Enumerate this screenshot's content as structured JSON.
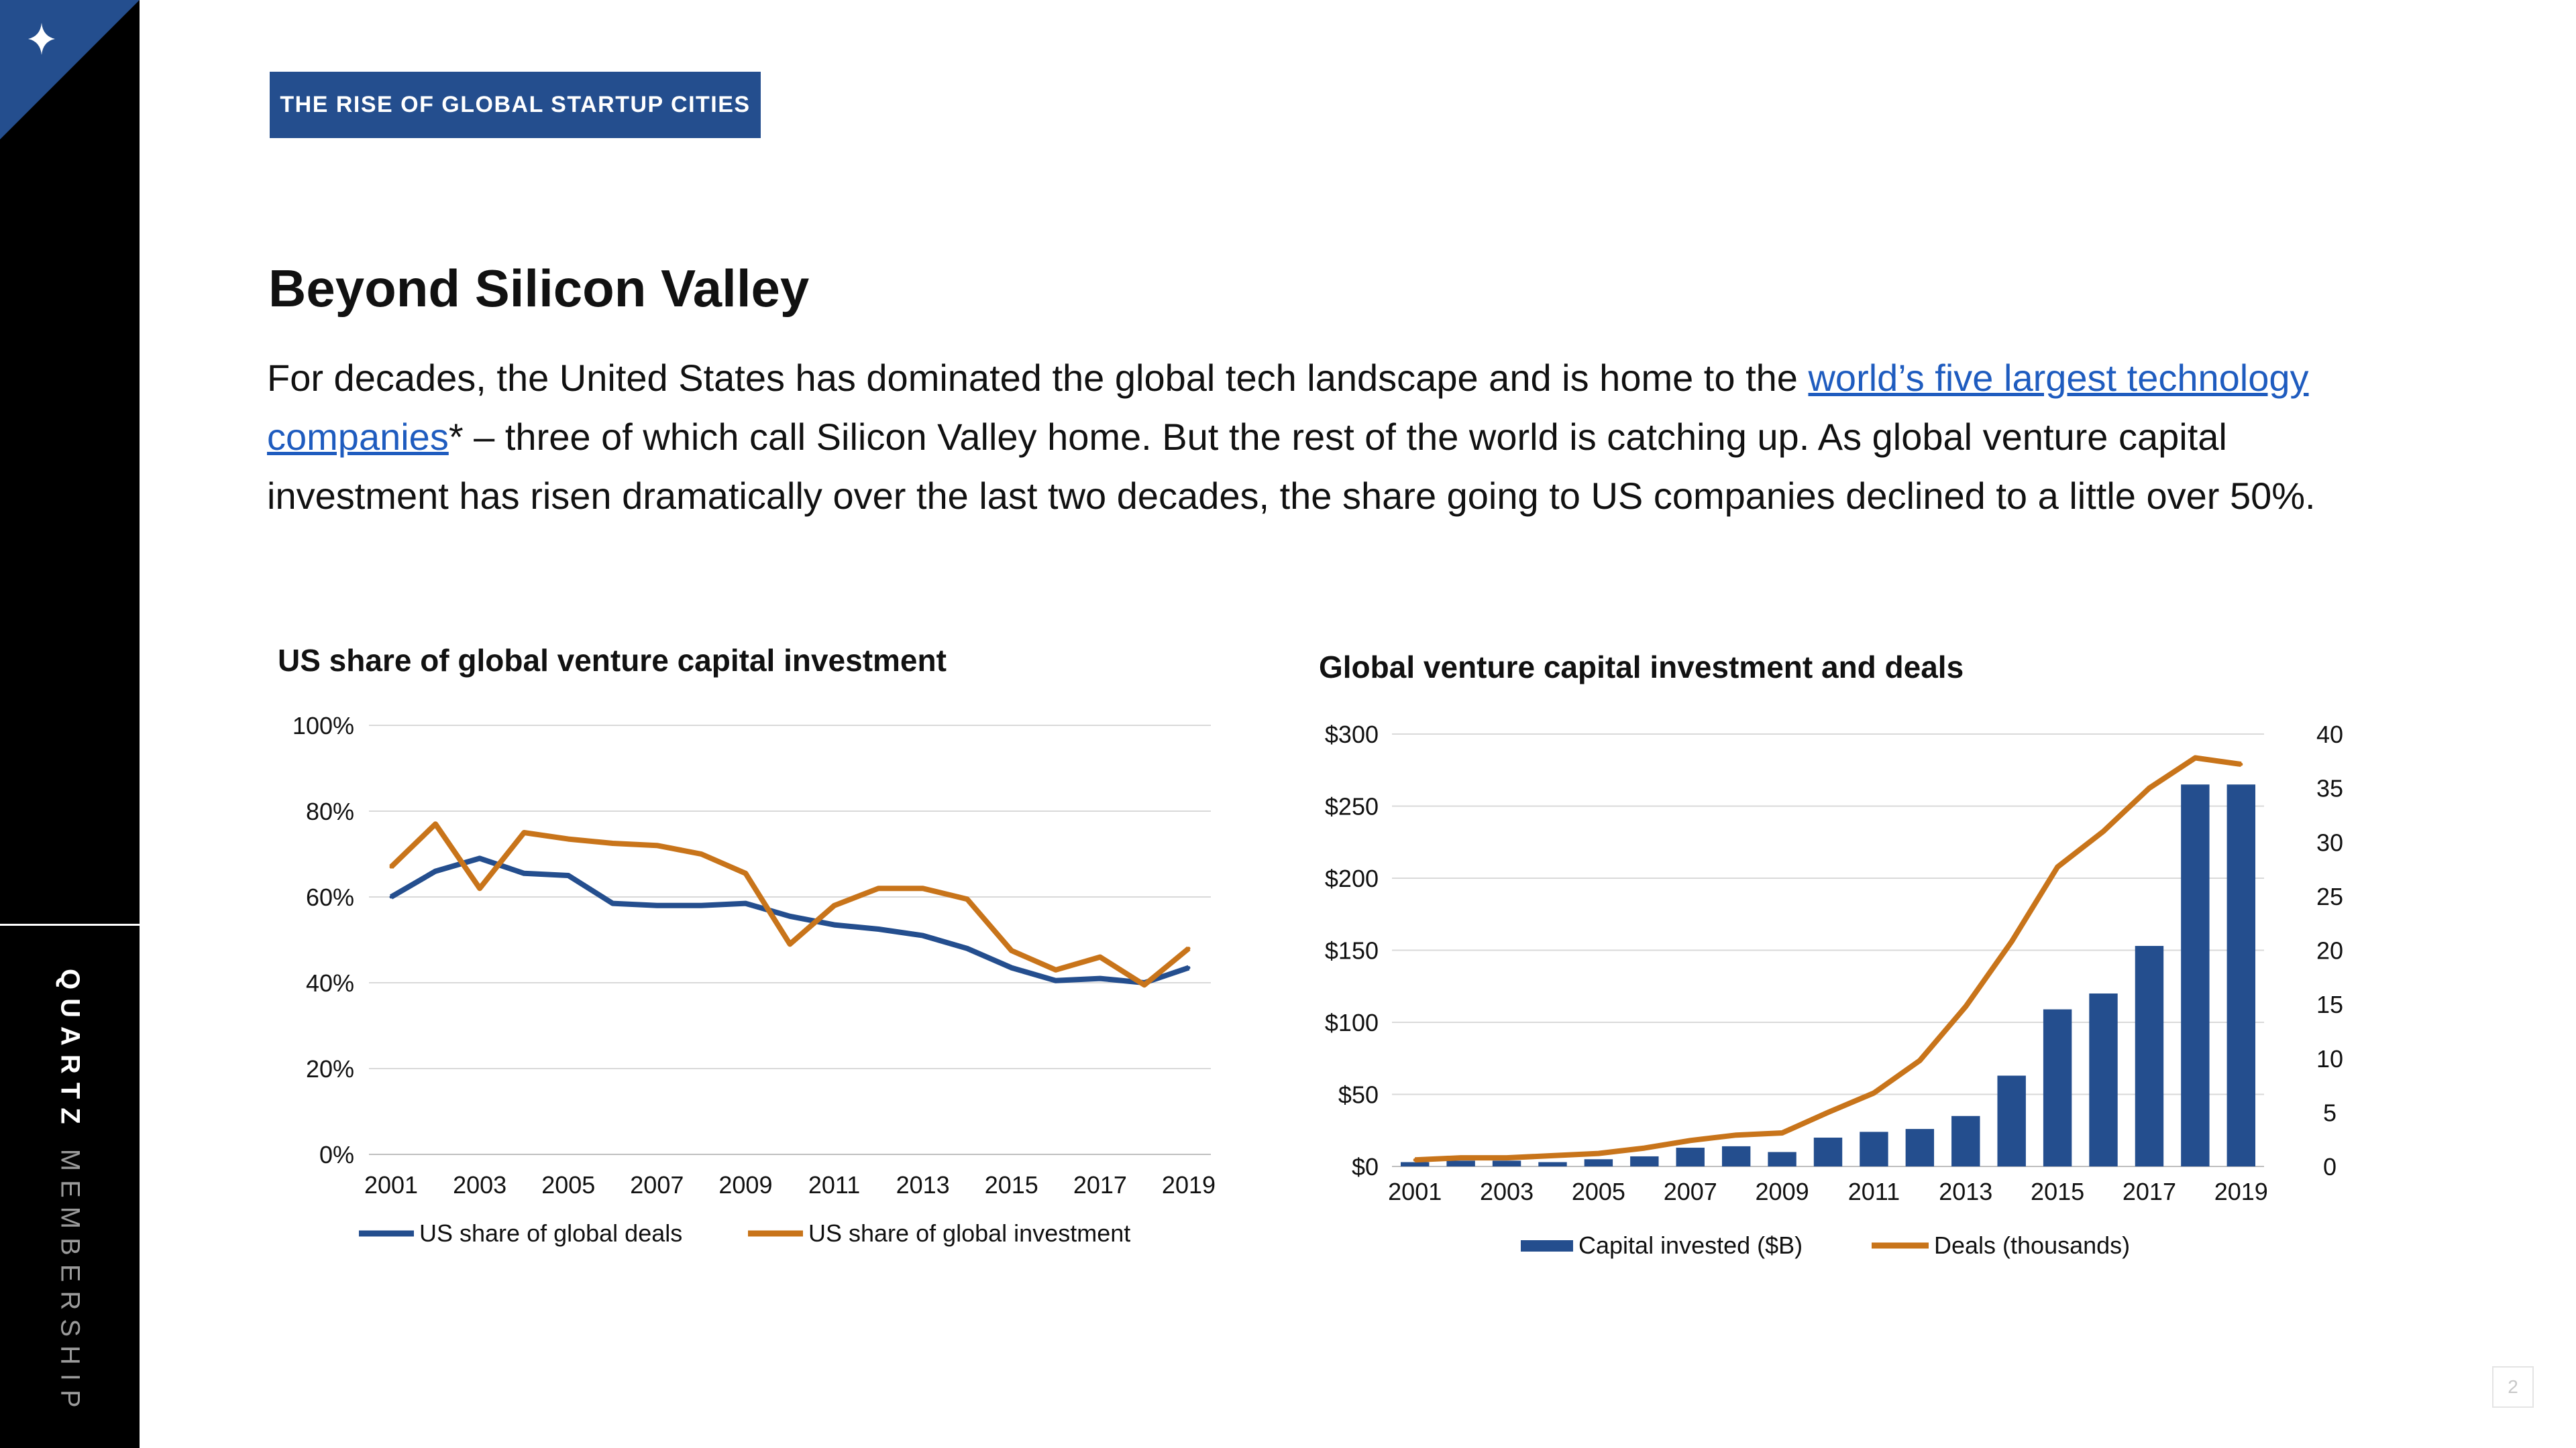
{
  "sidebar": {
    "brand_primary": "QUARTZ",
    "brand_secondary": "MEMBERSHIP",
    "corner_icon": "sparkle-icon",
    "corner_color": "#244e8e"
  },
  "tag_label": "THE RISE OF GLOBAL STARTUP CITIES",
  "heading": "Beyond Silicon Valley",
  "paragraph": {
    "part1": "For decades, the United States has dominated the global tech landscape and is home to the ",
    "link_text": "world’s five largest technology companies",
    "part2": "* – three of which call Silicon Valley home. But the rest of the world is catching up. As global venture capital investment has risen dramatically over the last two decades, the share going to US companies declined to a little over 50%."
  },
  "page_number": "2",
  "colors": {
    "navy": "#244e8e",
    "orange": "#c8741a",
    "link": "#1f5cbf"
  },
  "chart_data": [
    {
      "type": "line",
      "title": "US share of global venture capital investment",
      "x": [
        2001,
        2002,
        2003,
        2004,
        2005,
        2006,
        2007,
        2008,
        2009,
        2010,
        2011,
        2012,
        2013,
        2014,
        2015,
        2016,
        2017,
        2018,
        2019
      ],
      "x_tick_labels": [
        "2001",
        "2003",
        "2005",
        "2007",
        "2009",
        "2011",
        "2013",
        "2015",
        "2017",
        "2019"
      ],
      "y_tick_labels": [
        "0%",
        "20%",
        "40%",
        "60%",
        "80%",
        "100%"
      ],
      "ylim": [
        0,
        100
      ],
      "grid": true,
      "legend_position": "bottom",
      "series": [
        {
          "name": "US share of global deals",
          "color": "#244e8e",
          "values": [
            60,
            66,
            69,
            65.5,
            65,
            58.5,
            58,
            58,
            58.5,
            55.5,
            53.5,
            52.5,
            51,
            48,
            43.5,
            40.5,
            41,
            40,
            43.5
          ]
        },
        {
          "name": "US share of global investment",
          "color": "#c8741a",
          "values": [
            67,
            77,
            62,
            75,
            73.5,
            72.5,
            72,
            70,
            65.5,
            49,
            58,
            62,
            62,
            59.5,
            47.5,
            43,
            46,
            39.5,
            48
          ]
        }
      ]
    },
    {
      "type": "bar",
      "title": "Global venture capital investment and deals",
      "categories": [
        "2001",
        "2002",
        "2003",
        "2004",
        "2005",
        "2006",
        "2007",
        "2008",
        "2009",
        "2010",
        "2011",
        "2012",
        "2013",
        "2014",
        "2015",
        "2016",
        "2017",
        "2018",
        "2019"
      ],
      "x_tick_labels": [
        "2001",
        "2003",
        "2005",
        "2007",
        "2009",
        "2011",
        "2013",
        "2015",
        "2017",
        "2019"
      ],
      "y_tick_labels": [
        "$0",
        "$50",
        "$100",
        "$150",
        "$200",
        "$250",
        "$300"
      ],
      "y2_tick_labels": [
        "0",
        "5",
        "10",
        "15",
        "20",
        "25",
        "30",
        "35",
        "40"
      ],
      "ylim": [
        0,
        300
      ],
      "y2lim": [
        0,
        40
      ],
      "grid": true,
      "legend_position": "bottom",
      "series": [
        {
          "name": "Capital invested ($B)",
          "type": "bar",
          "axis": "left",
          "color": "#244e8e",
          "values": [
            3,
            4,
            4,
            3,
            5,
            7,
            13,
            14,
            10,
            20,
            24,
            26,
            35,
            63,
            109,
            120,
            153,
            265,
            265
          ]
        },
        {
          "name": "Deals (thousands)",
          "type": "line",
          "axis": "right",
          "color": "#c8741a",
          "values": [
            0.6,
            0.8,
            0.8,
            1.0,
            1.2,
            1.7,
            2.4,
            2.9,
            3.1,
            5.0,
            6.8,
            9.8,
            14.8,
            20.8,
            27.7,
            31.0,
            35.0,
            37.8,
            37.2
          ]
        }
      ]
    }
  ]
}
